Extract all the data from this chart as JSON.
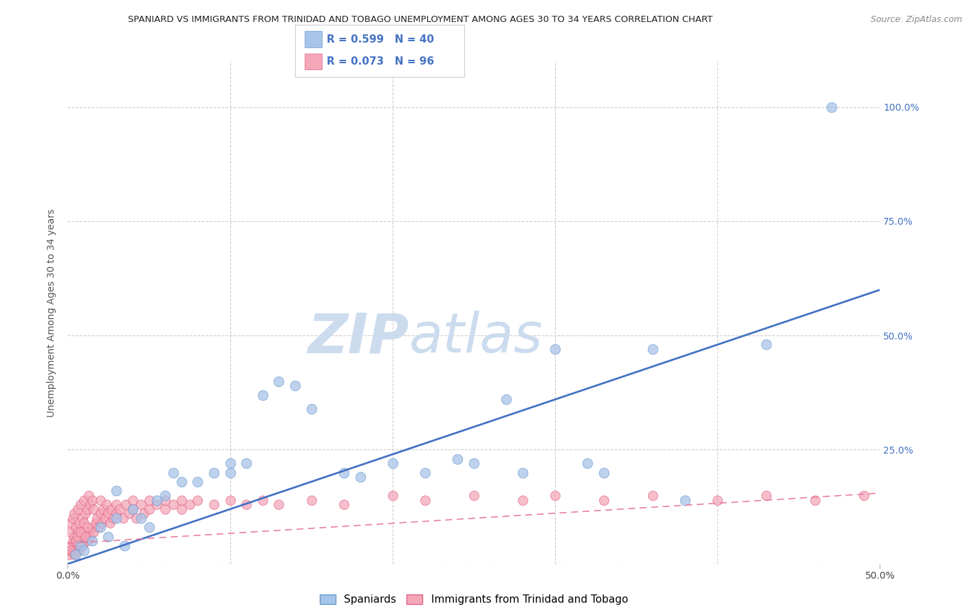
{
  "title": "SPANIARD VS IMMIGRANTS FROM TRINIDAD AND TOBAGO UNEMPLOYMENT AMONG AGES 30 TO 34 YEARS CORRELATION CHART",
  "source": "Source: ZipAtlas.com",
  "ylabel": "Unemployment Among Ages 30 to 34 years",
  "xlim": [
    0.0,
    0.5
  ],
  "ylim": [
    0.0,
    1.1
  ],
  "xticks": [
    0.0,
    0.5
  ],
  "xtick_labels": [
    "0.0%",
    "50.0%"
  ],
  "yticks_right": [
    0.25,
    0.5,
    0.75,
    1.0
  ],
  "ytick_labels_right": [
    "25.0%",
    "50.0%",
    "75.0%",
    "100.0%"
  ],
  "yticks_left": [
    0.0,
    0.25,
    0.5,
    0.75,
    1.0
  ],
  "spaniards_color": "#a8c4e8",
  "spaniards_edge": "#6699cc",
  "trinidad_color": "#f4a7b9",
  "trinidad_edge": "#e06080",
  "spaniards_R": 0.599,
  "spaniards_N": 40,
  "trinidad_R": 0.073,
  "trinidad_N": 96,
  "watermark_zip": "ZIP",
  "watermark_atlas": "atlas",
  "watermark_color": "#ccdcee",
  "background_color": "#ffffff",
  "grid_color": "#cccccc",
  "legend_R_color": "#4472c4",
  "trend_blue_color": "#4472c4",
  "trend_pink_color": "#e87ca0",
  "spaniards_x": [
    0.005,
    0.008,
    0.01,
    0.015,
    0.02,
    0.025,
    0.03,
    0.03,
    0.035,
    0.04,
    0.045,
    0.05,
    0.055,
    0.06,
    0.065,
    0.07,
    0.08,
    0.09,
    0.1,
    0.1,
    0.11,
    0.12,
    0.13,
    0.14,
    0.15,
    0.17,
    0.18,
    0.2,
    0.22,
    0.24,
    0.25,
    0.27,
    0.28,
    0.3,
    0.32,
    0.33,
    0.36,
    0.38,
    0.43,
    0.47
  ],
  "spaniards_y": [
    0.02,
    0.04,
    0.03,
    0.05,
    0.08,
    0.06,
    0.1,
    0.16,
    0.04,
    0.12,
    0.1,
    0.08,
    0.14,
    0.15,
    0.2,
    0.18,
    0.18,
    0.2,
    0.2,
    0.22,
    0.22,
    0.37,
    0.4,
    0.39,
    0.34,
    0.2,
    0.19,
    0.22,
    0.2,
    0.23,
    0.22,
    0.36,
    0.2,
    0.47,
    0.22,
    0.2,
    0.47,
    0.14,
    0.48,
    1.0
  ],
  "trinidad_x": [
    0.001,
    0.001,
    0.002,
    0.002,
    0.003,
    0.003,
    0.004,
    0.004,
    0.005,
    0.005,
    0.006,
    0.006,
    0.007,
    0.007,
    0.008,
    0.008,
    0.009,
    0.009,
    0.01,
    0.01,
    0.011,
    0.011,
    0.012,
    0.012,
    0.013,
    0.013,
    0.014,
    0.014,
    0.015,
    0.015,
    0.016,
    0.016,
    0.017,
    0.018,
    0.019,
    0.02,
    0.02,
    0.021,
    0.022,
    0.023,
    0.024,
    0.025,
    0.026,
    0.027,
    0.028,
    0.03,
    0.03,
    0.032,
    0.034,
    0.036,
    0.038,
    0.04,
    0.04,
    0.042,
    0.045,
    0.047,
    0.05,
    0.05,
    0.055,
    0.06,
    0.06,
    0.065,
    0.07,
    0.07,
    0.075,
    0.08,
    0.09,
    0.1,
    0.11,
    0.12,
    0.13,
    0.15,
    0.17,
    0.2,
    0.22,
    0.25,
    0.28,
    0.3,
    0.33,
    0.36,
    0.4,
    0.43,
    0.46,
    0.49,
    0.001,
    0.002,
    0.003,
    0.004,
    0.005,
    0.006,
    0.007,
    0.008,
    0.009,
    0.01,
    0.011,
    0.012
  ],
  "trinidad_y": [
    0.03,
    0.07,
    0.04,
    0.09,
    0.05,
    0.1,
    0.06,
    0.11,
    0.05,
    0.08,
    0.07,
    0.12,
    0.04,
    0.09,
    0.06,
    0.13,
    0.05,
    0.1,
    0.07,
    0.14,
    0.06,
    0.11,
    0.05,
    0.12,
    0.07,
    0.15,
    0.06,
    0.13,
    0.08,
    0.14,
    0.07,
    0.12,
    0.09,
    0.1,
    0.08,
    0.11,
    0.14,
    0.09,
    0.12,
    0.1,
    0.13,
    0.11,
    0.09,
    0.12,
    0.1,
    0.13,
    0.11,
    0.12,
    0.1,
    0.13,
    0.11,
    0.12,
    0.14,
    0.1,
    0.13,
    0.11,
    0.12,
    0.14,
    0.13,
    0.12,
    0.14,
    0.13,
    0.12,
    0.14,
    0.13,
    0.14,
    0.13,
    0.14,
    0.13,
    0.14,
    0.13,
    0.14,
    0.13,
    0.15,
    0.14,
    0.15,
    0.14,
    0.15,
    0.14,
    0.15,
    0.14,
    0.15,
    0.14,
    0.15,
    0.02,
    0.03,
    0.025,
    0.02,
    0.05,
    0.06,
    0.03,
    0.07,
    0.04,
    0.09,
    0.06,
    0.08
  ],
  "trend_blue_x0": 0.0,
  "trend_blue_y0": 0.0,
  "trend_blue_x1": 0.5,
  "trend_blue_y1": 0.6,
  "trend_pink_x0": 0.0,
  "trend_pink_y0": 0.045,
  "trend_pink_x1": 0.5,
  "trend_pink_y1": 0.155
}
